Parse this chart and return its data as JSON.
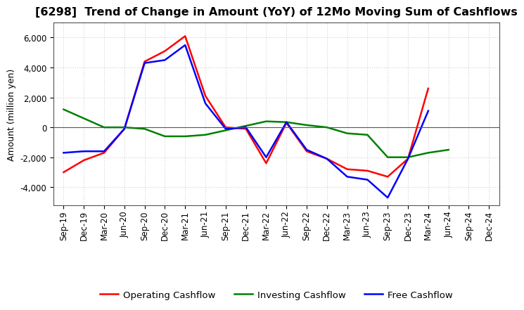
{
  "title": "[6298]  Trend of Change in Amount (YoY) of 12Mo Moving Sum of Cashflows",
  "ylabel": "Amount (million yen)",
  "x_labels": [
    "Sep-19",
    "Dec-19",
    "Mar-20",
    "Jun-20",
    "Sep-20",
    "Dec-20",
    "Mar-21",
    "Jun-21",
    "Sep-21",
    "Dec-21",
    "Mar-22",
    "Jun-22",
    "Sep-22",
    "Dec-22",
    "Mar-23",
    "Jun-23",
    "Sep-23",
    "Dec-23",
    "Mar-24",
    "Jun-24",
    "Sep-24",
    "Dec-24"
  ],
  "operating_cashflow": [
    -3000,
    -2200,
    -1700,
    -100,
    4400,
    5100,
    6100,
    2100,
    0,
    -100,
    -2400,
    300,
    -1600,
    -2100,
    -2800,
    -2900,
    -3300,
    -2100,
    2600,
    null,
    null,
    null
  ],
  "investing_cashflow": [
    1200,
    600,
    0,
    0,
    -100,
    -600,
    -600,
    -500,
    -200,
    100,
    400,
    350,
    150,
    0,
    -400,
    -500,
    -2000,
    -2000,
    -1700,
    -1500,
    null,
    null
  ],
  "free_cashflow": [
    -1700,
    -1600,
    -1600,
    -100,
    4300,
    4500,
    5500,
    1600,
    -100,
    0,
    -2000,
    350,
    -1500,
    -2100,
    -3300,
    -3500,
    -4700,
    -2100,
    1100,
    null,
    null,
    null
  ],
  "operating_color": "#ff0000",
  "investing_color": "#008000",
  "free_color": "#0000ff",
  "ylim": [
    -5200,
    7000
  ],
  "yticks": [
    -4000,
    -2000,
    0,
    2000,
    4000,
    6000
  ],
  "background_color": "#ffffff",
  "grid_color": "#999999",
  "title_fontsize": 11.5,
  "axis_fontsize": 9,
  "tick_fontsize": 8.5,
  "legend_fontsize": 9.5,
  "line_width": 1.8
}
